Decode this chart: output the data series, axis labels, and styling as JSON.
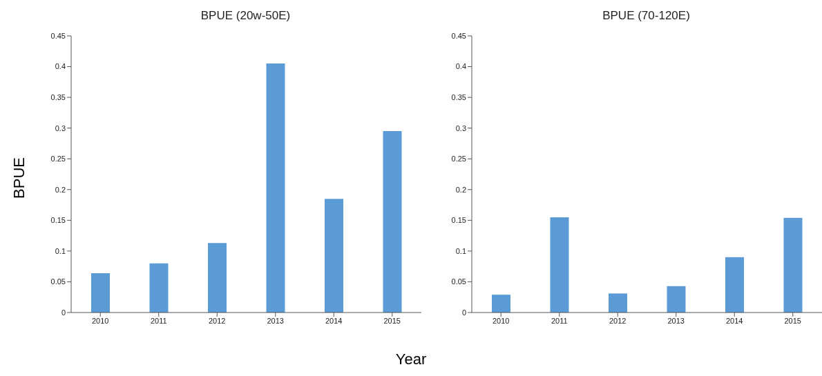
{
  "chart_data": [
    {
      "type": "bar",
      "title": "BPUE (20w-50E)",
      "xlabel": "Year",
      "ylabel": "BPUE",
      "categories": [
        "2010",
        "2011",
        "2012",
        "2013",
        "2014",
        "2015"
      ],
      "values": [
        0.064,
        0.08,
        0.113,
        0.405,
        0.185,
        0.295
      ],
      "color": "#5b9bd5",
      "ylim": [
        0,
        0.45
      ],
      "yticks": [
        0,
        0.05,
        0.1,
        0.15,
        0.2,
        0.25,
        0.3,
        0.35,
        0.4,
        0.45
      ],
      "grid": false,
      "legend": false
    },
    {
      "type": "bar",
      "title": "BPUE (70-120E)",
      "categories": [
        "2010",
        "2011",
        "2012",
        "2013",
        "2014",
        "2015"
      ],
      "values": [
        0.029,
        0.155,
        0.031,
        0.043,
        0.09,
        0.154
      ],
      "color": "#5b9bd5",
      "ylim": [
        0,
        0.45
      ],
      "yticks": [
        0,
        0.05,
        0.1,
        0.15,
        0.2,
        0.25,
        0.3,
        0.35,
        0.4,
        0.45
      ],
      "grid": false,
      "legend": false
    }
  ]
}
